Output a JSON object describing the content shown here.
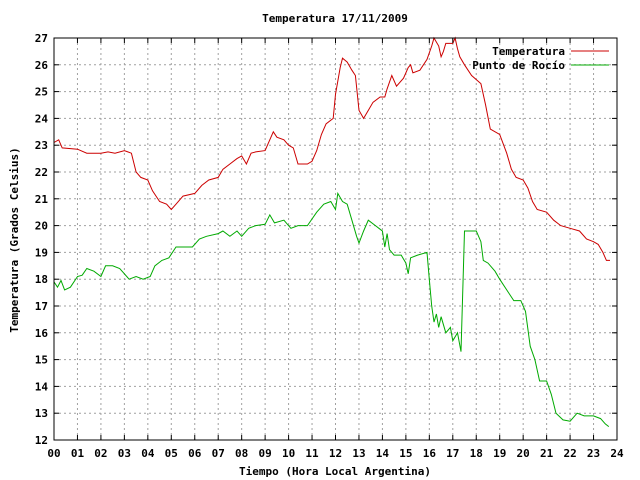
{
  "chart_data": {
    "type": "line",
    "title": "Temperatura 17/11/2009",
    "xlabel": "Tiempo (Hora Local Argentina)",
    "ylabel": "Temperatura (Grados Celsius)",
    "xlim": [
      0,
      24
    ],
    "ylim": [
      12,
      27
    ],
    "grid": true,
    "legend_position": "top-right",
    "x_tick_labels": [
      "00",
      "01",
      "02",
      "03",
      "04",
      "05",
      "06",
      "07",
      "08",
      "09",
      "10",
      "11",
      "12",
      "13",
      "14",
      "15",
      "16",
      "17",
      "18",
      "19",
      "20",
      "21",
      "22",
      "23",
      "24"
    ],
    "y_ticks": [
      12,
      13,
      14,
      15,
      16,
      17,
      18,
      19,
      20,
      21,
      22,
      23,
      24,
      25,
      26,
      27
    ],
    "series": [
      {
        "name": "Temperatura",
        "color": "#cc0000",
        "points": [
          [
            0.0,
            23.1
          ],
          [
            0.2,
            23.2
          ],
          [
            0.35,
            22.9
          ],
          [
            1.0,
            22.85
          ],
          [
            1.4,
            22.7
          ],
          [
            2.0,
            22.7
          ],
          [
            2.3,
            22.75
          ],
          [
            2.6,
            22.7
          ],
          [
            3.0,
            22.8
          ],
          [
            3.3,
            22.7
          ],
          [
            3.5,
            22.0
          ],
          [
            3.7,
            21.8
          ],
          [
            4.0,
            21.7
          ],
          [
            4.2,
            21.3
          ],
          [
            4.5,
            20.9
          ],
          [
            4.8,
            20.8
          ],
          [
            5.0,
            20.6
          ],
          [
            5.2,
            20.8
          ],
          [
            5.5,
            21.1
          ],
          [
            6.0,
            21.2
          ],
          [
            6.3,
            21.5
          ],
          [
            6.6,
            21.7
          ],
          [
            7.0,
            21.8
          ],
          [
            7.2,
            22.1
          ],
          [
            7.5,
            22.3
          ],
          [
            7.8,
            22.5
          ],
          [
            8.0,
            22.6
          ],
          [
            8.2,
            22.3
          ],
          [
            8.4,
            22.7
          ],
          [
            8.6,
            22.75
          ],
          [
            9.0,
            22.8
          ],
          [
            9.2,
            23.2
          ],
          [
            9.35,
            23.5
          ],
          [
            9.5,
            23.3
          ],
          [
            9.8,
            23.2
          ],
          [
            10.0,
            23.0
          ],
          [
            10.2,
            22.9
          ],
          [
            10.4,
            22.3
          ],
          [
            10.8,
            22.3
          ],
          [
            11.0,
            22.4
          ],
          [
            11.2,
            22.8
          ],
          [
            11.4,
            23.4
          ],
          [
            11.6,
            23.8
          ],
          [
            11.9,
            24.0
          ],
          [
            12.0,
            24.9
          ],
          [
            12.2,
            25.9
          ],
          [
            12.3,
            26.25
          ],
          [
            12.5,
            26.1
          ],
          [
            12.7,
            25.8
          ],
          [
            12.85,
            25.6
          ],
          [
            13.0,
            24.3
          ],
          [
            13.2,
            24.0
          ],
          [
            13.4,
            24.3
          ],
          [
            13.6,
            24.6
          ],
          [
            13.9,
            24.8
          ],
          [
            14.1,
            24.8
          ],
          [
            14.2,
            25.1
          ],
          [
            14.4,
            25.6
          ],
          [
            14.6,
            25.2
          ],
          [
            14.9,
            25.5
          ],
          [
            15.1,
            25.9
          ],
          [
            15.2,
            26.0
          ],
          [
            15.3,
            25.7
          ],
          [
            15.6,
            25.8
          ],
          [
            15.9,
            26.2
          ],
          [
            16.1,
            26.7
          ],
          [
            16.2,
            27.0
          ],
          [
            16.4,
            26.7
          ],
          [
            16.5,
            26.3
          ],
          [
            16.6,
            26.5
          ],
          [
            16.7,
            26.8
          ],
          [
            17.0,
            26.8
          ],
          [
            17.1,
            27.0
          ],
          [
            17.2,
            26.6
          ],
          [
            17.3,
            26.3
          ],
          [
            17.5,
            26.0
          ],
          [
            17.8,
            25.6
          ],
          [
            18.2,
            25.3
          ],
          [
            18.4,
            24.5
          ],
          [
            18.6,
            23.6
          ],
          [
            19.0,
            23.4
          ],
          [
            19.3,
            22.7
          ],
          [
            19.5,
            22.1
          ],
          [
            19.7,
            21.8
          ],
          [
            20.0,
            21.7
          ],
          [
            20.2,
            21.4
          ],
          [
            20.4,
            20.9
          ],
          [
            20.6,
            20.6
          ],
          [
            21.0,
            20.5
          ],
          [
            21.3,
            20.2
          ],
          [
            21.6,
            20.0
          ],
          [
            22.0,
            19.9
          ],
          [
            22.4,
            19.8
          ],
          [
            22.7,
            19.5
          ],
          [
            23.0,
            19.4
          ],
          [
            23.2,
            19.3
          ],
          [
            23.4,
            19.0
          ],
          [
            23.55,
            18.7
          ],
          [
            23.7,
            18.7
          ]
        ]
      },
      {
        "name": "Punto de Rocío",
        "color": "#00aa00",
        "points": [
          [
            0.0,
            17.9
          ],
          [
            0.15,
            17.7
          ],
          [
            0.3,
            17.95
          ],
          [
            0.45,
            17.6
          ],
          [
            0.7,
            17.7
          ],
          [
            1.0,
            18.1
          ],
          [
            1.2,
            18.15
          ],
          [
            1.4,
            18.4
          ],
          [
            1.7,
            18.3
          ],
          [
            2.0,
            18.1
          ],
          [
            2.2,
            18.5
          ],
          [
            2.5,
            18.5
          ],
          [
            2.8,
            18.4
          ],
          [
            3.0,
            18.2
          ],
          [
            3.2,
            18.0
          ],
          [
            3.5,
            18.1
          ],
          [
            3.8,
            18.0
          ],
          [
            4.1,
            18.1
          ],
          [
            4.3,
            18.5
          ],
          [
            4.6,
            18.7
          ],
          [
            4.9,
            18.8
          ],
          [
            5.2,
            19.2
          ],
          [
            5.5,
            19.2
          ],
          [
            5.9,
            19.2
          ],
          [
            6.2,
            19.5
          ],
          [
            6.5,
            19.6
          ],
          [
            7.0,
            19.7
          ],
          [
            7.2,
            19.8
          ],
          [
            7.5,
            19.6
          ],
          [
            7.8,
            19.8
          ],
          [
            8.0,
            19.6
          ],
          [
            8.3,
            19.9
          ],
          [
            8.6,
            20.0
          ],
          [
            9.0,
            20.05
          ],
          [
            9.2,
            20.4
          ],
          [
            9.4,
            20.1
          ],
          [
            9.8,
            20.2
          ],
          [
            10.1,
            19.9
          ],
          [
            10.4,
            20.0
          ],
          [
            10.8,
            20.0
          ],
          [
            11.2,
            20.5
          ],
          [
            11.5,
            20.8
          ],
          [
            11.8,
            20.9
          ],
          [
            12.0,
            20.6
          ],
          [
            12.1,
            21.2
          ],
          [
            12.3,
            20.9
          ],
          [
            12.5,
            20.8
          ],
          [
            12.7,
            20.2
          ],
          [
            12.9,
            19.6
          ],
          [
            13.0,
            19.35
          ],
          [
            13.2,
            19.8
          ],
          [
            13.4,
            20.2
          ],
          [
            13.7,
            20.0
          ],
          [
            14.0,
            19.8
          ],
          [
            14.1,
            19.2
          ],
          [
            14.2,
            19.7
          ],
          [
            14.3,
            19.1
          ],
          [
            14.5,
            18.9
          ],
          [
            14.8,
            18.9
          ],
          [
            15.0,
            18.6
          ],
          [
            15.1,
            18.2
          ],
          [
            15.2,
            18.8
          ],
          [
            15.5,
            18.9
          ],
          [
            15.9,
            19.0
          ],
          [
            16.0,
            18.0
          ],
          [
            16.1,
            17.0
          ],
          [
            16.2,
            16.4
          ],
          [
            16.3,
            16.7
          ],
          [
            16.4,
            16.2
          ],
          [
            16.5,
            16.6
          ],
          [
            16.7,
            16.0
          ],
          [
            16.9,
            16.2
          ],
          [
            17.0,
            15.7
          ],
          [
            17.2,
            16.0
          ],
          [
            17.35,
            15.3
          ],
          [
            17.5,
            19.8
          ],
          [
            17.7,
            19.8
          ],
          [
            18.0,
            19.8
          ],
          [
            18.2,
            19.4
          ],
          [
            18.3,
            18.7
          ],
          [
            18.5,
            18.6
          ],
          [
            18.8,
            18.3
          ],
          [
            19.0,
            18.0
          ],
          [
            19.3,
            17.6
          ],
          [
            19.6,
            17.2
          ],
          [
            19.9,
            17.2
          ],
          [
            20.1,
            16.8
          ],
          [
            20.3,
            15.5
          ],
          [
            20.5,
            15.0
          ],
          [
            20.7,
            14.2
          ],
          [
            21.0,
            14.2
          ],
          [
            21.2,
            13.7
          ],
          [
            21.4,
            13.0
          ],
          [
            21.7,
            12.75
          ],
          [
            22.0,
            12.7
          ],
          [
            22.3,
            13.0
          ],
          [
            22.6,
            12.9
          ],
          [
            23.0,
            12.9
          ],
          [
            23.3,
            12.8
          ],
          [
            23.5,
            12.6
          ],
          [
            23.65,
            12.5
          ]
        ]
      }
    ]
  }
}
